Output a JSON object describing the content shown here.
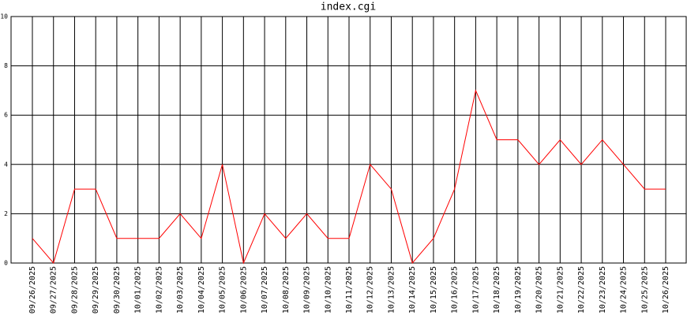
{
  "chart_data": {
    "type": "line",
    "title": "index.cgi",
    "categories": [
      "09/26/2025",
      "09/27/2025",
      "09/28/2025",
      "09/29/2025",
      "09/30/2025",
      "10/01/2025",
      "10/02/2025",
      "10/03/2025",
      "10/04/2025",
      "10/05/2025",
      "10/06/2025",
      "10/07/2025",
      "10/08/2025",
      "10/09/2025",
      "10/10/2025",
      "10/11/2025",
      "10/12/2025",
      "10/13/2025",
      "10/14/2025",
      "10/15/2025",
      "10/16/2025",
      "10/17/2025",
      "10/18/2025",
      "10/19/2025",
      "10/20/2025",
      "10/21/2025",
      "10/22/2025",
      "10/23/2025",
      "10/24/2025",
      "10/25/2025",
      "10/26/2025"
    ],
    "values": [
      1,
      0,
      3,
      3,
      1,
      1,
      1,
      2,
      1,
      4,
      0,
      2,
      1,
      2,
      1,
      1,
      4,
      3,
      0,
      1,
      3,
      7,
      5,
      5,
      4,
      5,
      4,
      5,
      4,
      3,
      3
    ],
    "color": "#ff0000",
    "ylim": [
      0,
      10
    ],
    "yticks": [
      0,
      2,
      4,
      6,
      8,
      10
    ],
    "grid": true
  }
}
